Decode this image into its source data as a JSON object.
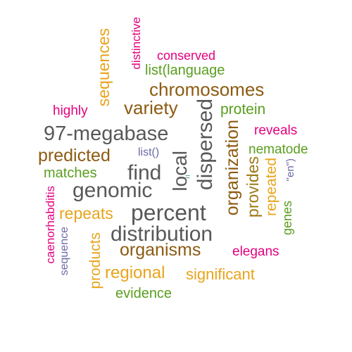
{
  "colors": {
    "dark_gray": "#58585a",
    "brown": "#8c5b12",
    "olive_gold": "#9c7a14",
    "gold": "#e8a41c",
    "green": "#5a9e1e",
    "magenta": "#e4007f",
    "slate_blue": "#6a6aa6",
    "teal": "#3d9a66"
  },
  "words": {
    "w97_megabase": "97-megabase",
    "percent": "percent",
    "distribution": "distribution",
    "find": "find",
    "genomic": "genomic",
    "local": "local",
    "dispersed": "dispersed",
    "chromosomes": "chromosomes",
    "variety": "variety",
    "predicted": "predicted",
    "organisms": "organisms",
    "organization": "organization",
    "sequences": "sequences",
    "provides": "provides",
    "regional": "regional",
    "repeats": "repeats",
    "significant": "significant",
    "products": "products",
    "protein": "protein",
    "repeated": "repeated",
    "nematode": "nematode",
    "list_language": "list(language",
    "matches": "matches",
    "evidence": "evidence",
    "genes": "genes",
    "conserved": "conserved",
    "highly": "highly",
    "distinctive": "distinctive",
    "reveals": "reveals",
    "elegans": "elegans",
    "caenorhabditis": "caenorhabditis",
    "sequence": "sequence",
    "list_empty": "list()",
    "en": "\"en\")",
    "equals": "="
  }
}
